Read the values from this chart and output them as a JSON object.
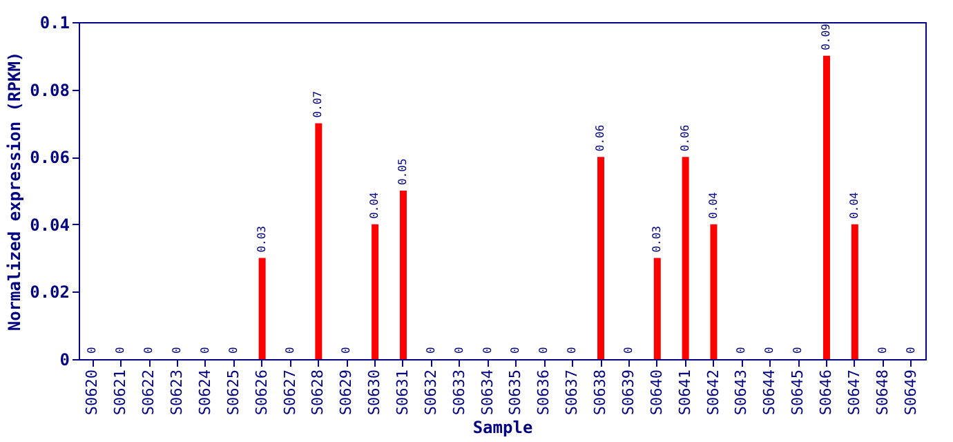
{
  "chart_data": {
    "type": "bar",
    "xlabel": "Sample",
    "ylabel": "Normalized expression (RPKM)",
    "categories": [
      "S0620",
      "S0621",
      "S0622",
      "S0623",
      "S0624",
      "S0625",
      "S0626",
      "S0627",
      "S0628",
      "S0629",
      "S0630",
      "S0631",
      "S0632",
      "S0633",
      "S0634",
      "S0635",
      "S0636",
      "S0637",
      "S0638",
      "S0639",
      "S0640",
      "S0641",
      "S0642",
      "S0643",
      "S0644",
      "S0645",
      "S0646",
      "S0647",
      "S0648",
      "S0649"
    ],
    "values": [
      0,
      0,
      0,
      0,
      0,
      0,
      0.03,
      0,
      0.07,
      0,
      0.04,
      0.05,
      0,
      0,
      0,
      0,
      0,
      0,
      0.06,
      0,
      0.03,
      0.06,
      0.04,
      0,
      0,
      0,
      0.09,
      0.04,
      0,
      0
    ],
    "color": "#ff0000",
    "data_labels": true,
    "grid": false,
    "ylim": [
      0,
      0.1
    ],
    "yticks": [
      0,
      0.02,
      0.04,
      0.06,
      0.08,
      0.1
    ]
  }
}
